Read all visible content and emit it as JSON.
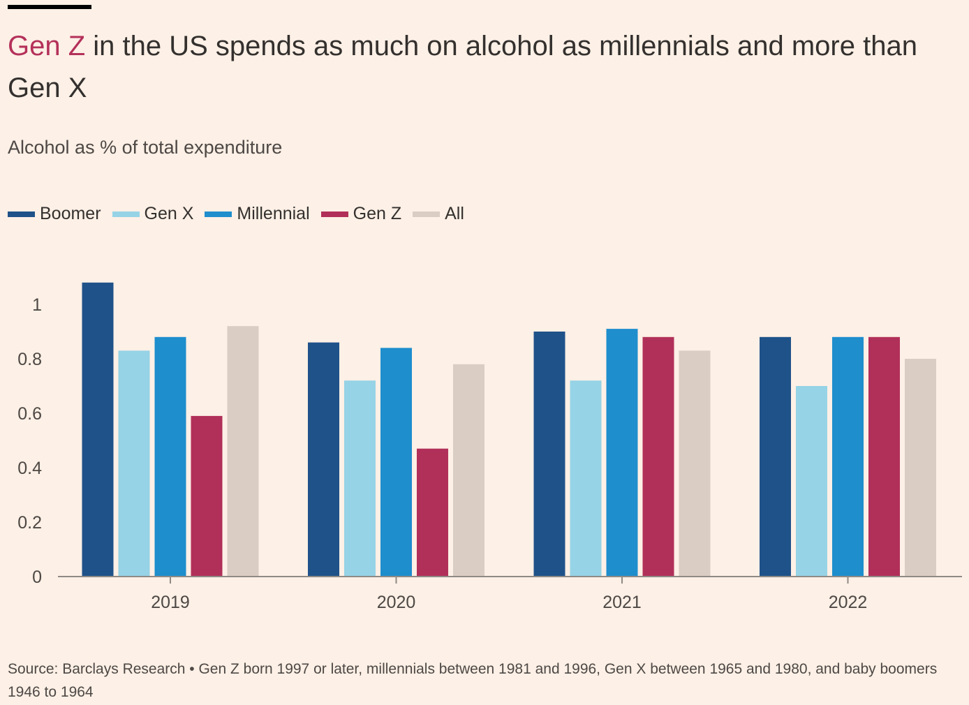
{
  "header": {
    "title_highlight": "Gen Z",
    "title_rest": " in the US spends as much on alcohol as millennials and more than Gen X",
    "subtitle": "Alcohol as % of total expenditure"
  },
  "legend": [
    {
      "label": "Boomer",
      "color": "#1f5289"
    },
    {
      "label": "Gen X",
      "color": "#96d3e6"
    },
    {
      "label": "Millennial",
      "color": "#1e8ecd"
    },
    {
      "label": "Gen Z",
      "color": "#b1305a"
    },
    {
      "label": "All",
      "color": "#dacdc4"
    }
  ],
  "footer": {
    "source": "Source: Barclays Research • Gen Z born 1997 or later, millennials between 1981 and 1996, Gen X between 1965 and 1980, and baby boomers 1946 to 1964"
  },
  "chart_data": {
    "type": "bar",
    "title": "Gen Z in the US spends as much on alcohol as millennials and more than Gen X",
    "subtitle": "Alcohol as % of total expenditure",
    "xlabel": "",
    "ylabel": "",
    "categories": [
      "2019",
      "2020",
      "2021",
      "2022"
    ],
    "series": [
      {
        "name": "Boomer",
        "color": "#1f5289",
        "values": [
          1.08,
          0.86,
          0.9,
          0.88
        ]
      },
      {
        "name": "Gen X",
        "color": "#96d3e6",
        "values": [
          0.83,
          0.72,
          0.72,
          0.7
        ]
      },
      {
        "name": "Millennial",
        "color": "#1e8ecd",
        "values": [
          0.88,
          0.84,
          0.91,
          0.88
        ]
      },
      {
        "name": "Gen Z",
        "color": "#b1305a",
        "values": [
          0.59,
          0.47,
          0.88,
          0.88
        ]
      },
      {
        "name": "All",
        "color": "#dacdc4",
        "values": [
          0.92,
          0.78,
          0.83,
          0.8
        ]
      }
    ],
    "ylim": [
      0,
      1
    ],
    "yticks": [
      0,
      0.2,
      0.4,
      0.6,
      0.8,
      1
    ],
    "ytick_labels": [
      "0",
      "0.2",
      "0.4",
      "0.6",
      "0.8",
      "1"
    ],
    "legend_position": "top-left",
    "grid": false
  }
}
